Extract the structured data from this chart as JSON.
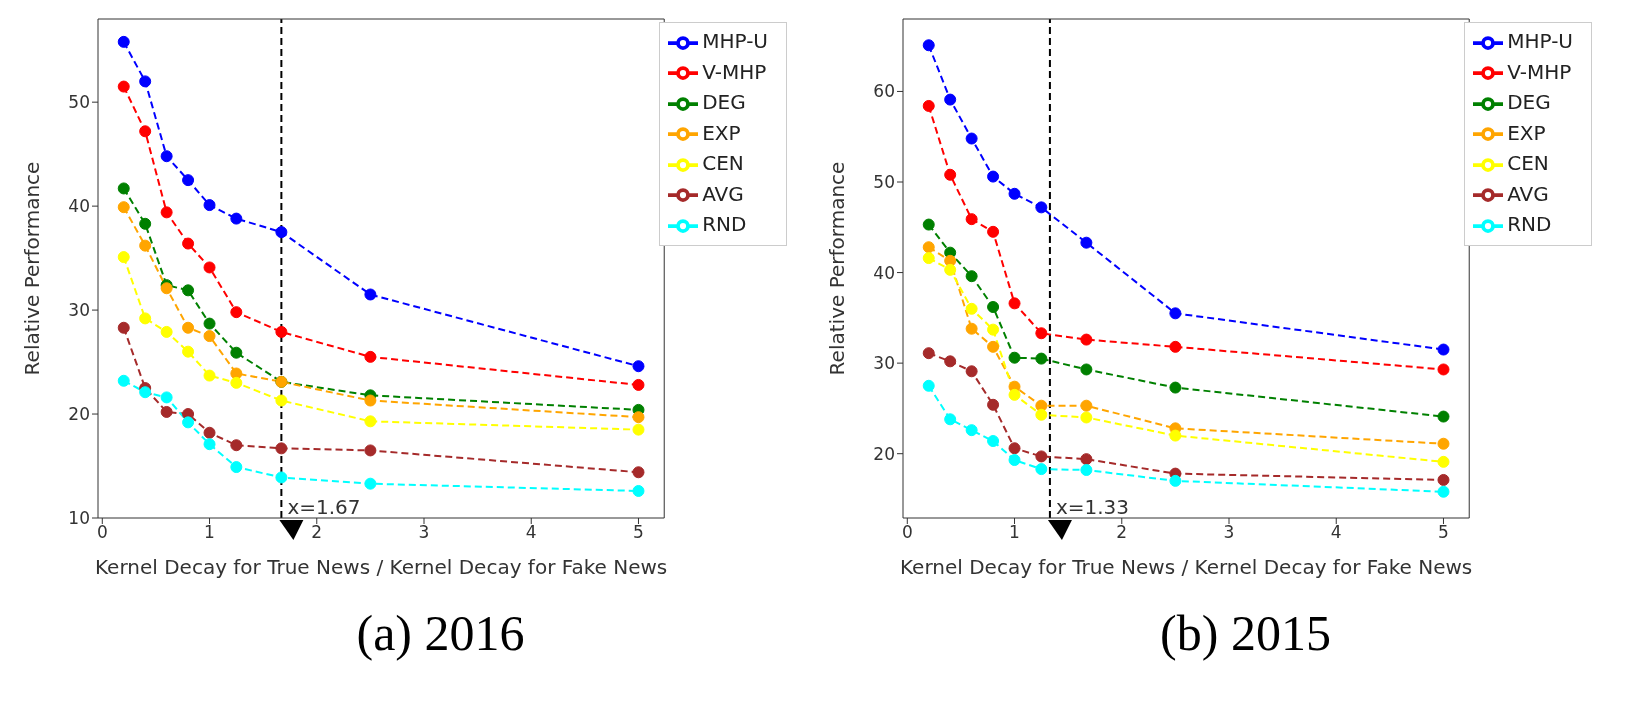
{
  "chart_data": [
    {
      "type": "line",
      "title": "(a) 2016",
      "xlabel": "Kernel Decay for True News / Kernel Decay for Fake News",
      "ylabel": "Relative Performance",
      "x": [
        0.2,
        0.4,
        0.6,
        0.8,
        1.0,
        1.25,
        1.67,
        2.5,
        5
      ],
      "xlim": [
        -0.04,
        5.24
      ],
      "xticks": [
        0,
        1,
        2,
        3,
        4,
        5
      ],
      "ylim": [
        10,
        58
      ],
      "yticks": [
        10,
        20,
        30,
        40,
        50
      ],
      "grid": false,
      "legend": "top right",
      "marker": "circle",
      "line_style": "dashed",
      "ref_lines": [
        {
          "axis": "x",
          "value": 1.67,
          "label": "x=1.67",
          "color": "#000000",
          "line_style": "dashed"
        }
      ],
      "series": [
        {
          "name": "MHP-U",
          "color": "#0000ff",
          "values": [
            55.8,
            52.0,
            44.8,
            42.5,
            40.1,
            38.8,
            37.5,
            31.5,
            24.6
          ]
        },
        {
          "name": "V-MHP",
          "color": "#ff0000",
          "values": [
            51.5,
            47.2,
            39.4,
            36.4,
            34.1,
            29.8,
            27.9,
            25.5,
            22.8
          ]
        },
        {
          "name": "DEG",
          "color": "#008000",
          "values": [
            41.7,
            38.3,
            32.4,
            31.9,
            28.7,
            25.9,
            23.1,
            21.8,
            20.4
          ]
        },
        {
          "name": "EXP",
          "color": "#ffa500",
          "values": [
            39.9,
            36.2,
            32.1,
            28.3,
            27.5,
            23.9,
            23.1,
            21.3,
            19.7
          ]
        },
        {
          "name": "CEN",
          "color": "#ffff00",
          "values": [
            35.1,
            29.2,
            27.9,
            26.0,
            23.7,
            23.0,
            21.3,
            19.3,
            18.5
          ]
        },
        {
          "name": "AVG",
          "color": "#a52a2a",
          "values": [
            28.3,
            22.5,
            20.2,
            20.0,
            18.2,
            17.0,
            16.7,
            16.5,
            14.4
          ]
        },
        {
          "name": "RND",
          "color": "#00ffff",
          "values": [
            23.2,
            22.1,
            21.6,
            19.2,
            17.1,
            14.9,
            13.9,
            13.3,
            12.6
          ]
        }
      ]
    },
    {
      "type": "line",
      "title": "(b) 2015",
      "xlabel": "Kernel Decay for True News / Kernel Decay for Fake News",
      "ylabel": "Relative Performance",
      "x": [
        0.2,
        0.4,
        0.6,
        0.8,
        1.0,
        1.25,
        1.67,
        2.5,
        5
      ],
      "xlim": [
        -0.04,
        5.24
      ],
      "xticks": [
        0,
        1,
        2,
        3,
        4,
        5
      ],
      "ylim": [
        12.9,
        68
      ],
      "yticks": [
        20,
        30,
        40,
        50,
        60
      ],
      "grid": false,
      "legend": "top right",
      "marker": "circle",
      "line_style": "dashed",
      "ref_lines": [
        {
          "axis": "x",
          "value": 1.33,
          "label": "x=1.33",
          "color": "#000000",
          "line_style": "dashed"
        }
      ],
      "series": [
        {
          "name": "MHP-U",
          "color": "#0000ff",
          "values": [
            65.1,
            59.1,
            54.8,
            50.6,
            48.7,
            47.2,
            43.3,
            35.5,
            31.5
          ]
        },
        {
          "name": "V-MHP",
          "color": "#ff0000",
          "values": [
            58.4,
            50.8,
            45.9,
            44.5,
            36.6,
            33.3,
            32.6,
            31.8,
            29.3
          ]
        },
        {
          "name": "DEG",
          "color": "#008000",
          "values": [
            45.3,
            42.2,
            39.6,
            36.2,
            30.6,
            30.5,
            29.3,
            27.3,
            24.1
          ]
        },
        {
          "name": "EXP",
          "color": "#ffa500",
          "values": [
            42.8,
            41.3,
            33.8,
            31.8,
            27.4,
            25.3,
            25.3,
            22.8,
            21.1
          ]
        },
        {
          "name": "CEN",
          "color": "#ffff00",
          "values": [
            41.6,
            40.3,
            36.0,
            33.7,
            26.5,
            24.3,
            24.0,
            22.0,
            19.1
          ]
        },
        {
          "name": "AVG",
          "color": "#a52a2a",
          "values": [
            31.1,
            30.2,
            29.1,
            25.4,
            20.6,
            19.7,
            19.4,
            17.8,
            17.1
          ]
        },
        {
          "name": "RND",
          "color": "#00ffff",
          "values": [
            27.5,
            23.8,
            22.6,
            21.4,
            19.3,
            18.3,
            18.2,
            17.0,
            15.8
          ]
        }
      ]
    }
  ]
}
